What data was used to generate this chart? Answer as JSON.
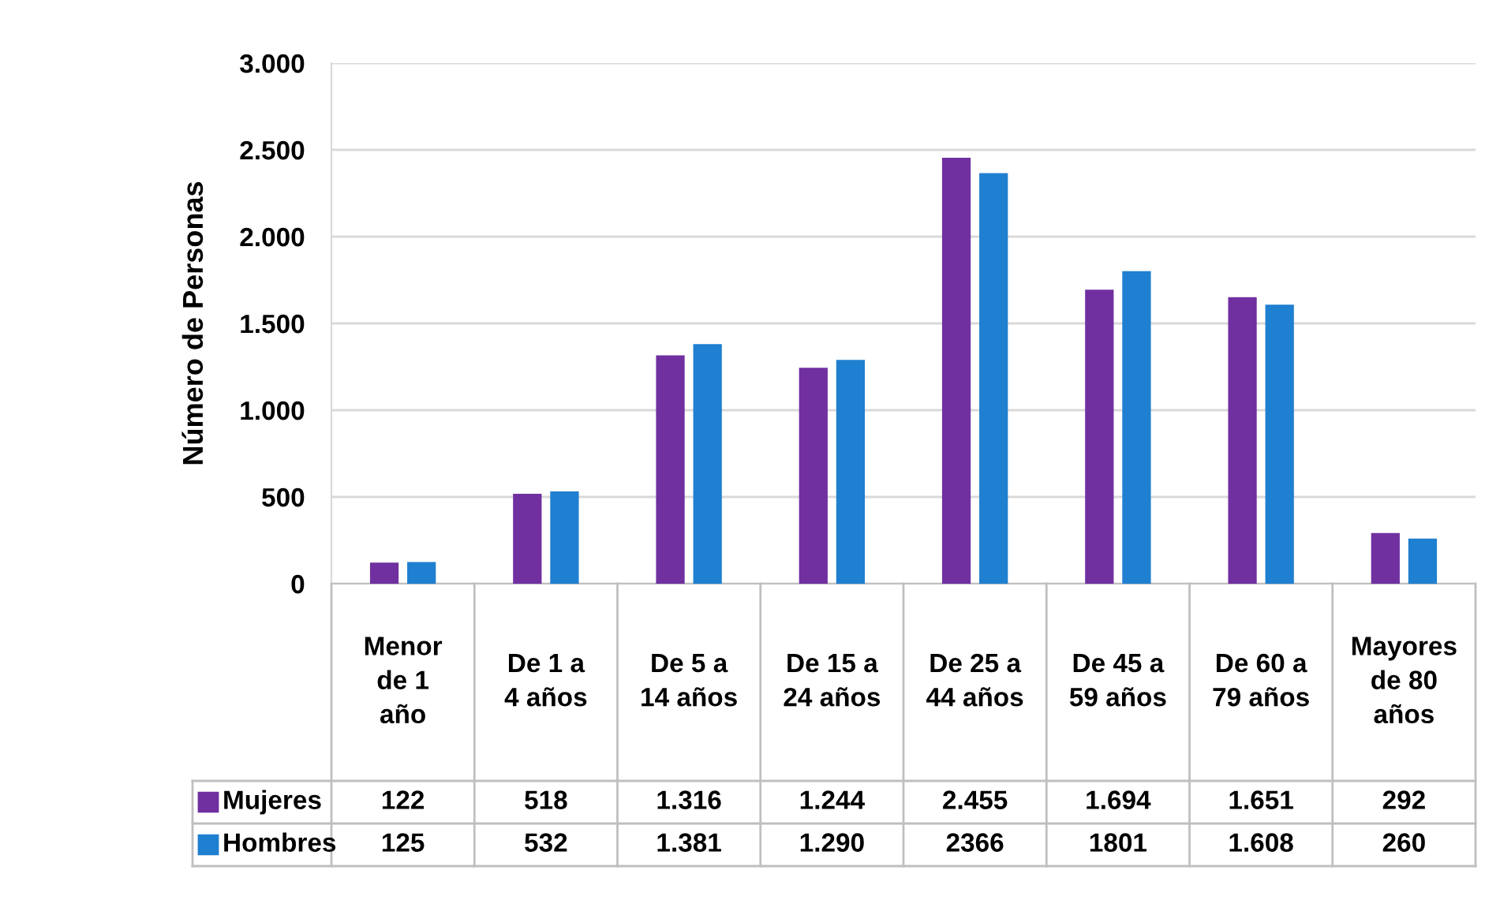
{
  "chart_data": {
    "type": "bar",
    "ylabel": "Número de Personas",
    "categories": [
      "Menor de 1 año",
      "De 1 a 4 años",
      "De 5 a 14 años",
      "De 15 a 24 años",
      "De 25 a 44 años",
      "De 45 a 59 años",
      "De 60 a 79 años",
      "Mayores de 80 años"
    ],
    "series": [
      {
        "name": "Mujeres",
        "color": "#7030a0",
        "values": [
          122,
          518,
          1316,
          1244,
          2455,
          1694,
          1651,
          292
        ],
        "value_labels": [
          "122",
          "518",
          "1.316",
          "1.244",
          "2.455",
          "1.694",
          "1.651",
          "292"
        ]
      },
      {
        "name": "Hombres",
        "color": "#1f7fd0",
        "values": [
          125,
          532,
          1381,
          1290,
          2366,
          1801,
          1608,
          260
        ],
        "value_labels": [
          "125",
          "532",
          "1.381",
          "1.290",
          "2366",
          "1801",
          "1.608",
          "260"
        ]
      }
    ],
    "ylim": [
      0,
      3000
    ],
    "yticks": [
      0,
      500,
      {
        "value": 1000,
        "label": "1.000"
      },
      {
        "value": 1500,
        "label": "1.500"
      },
      {
        "value": 2000,
        "label": "2.000"
      },
      {
        "value": 2500,
        "label": "2.500"
      },
      {
        "value": 3000,
        "label": "3.000"
      }
    ],
    "grid": "y",
    "legend": "bottom"
  }
}
